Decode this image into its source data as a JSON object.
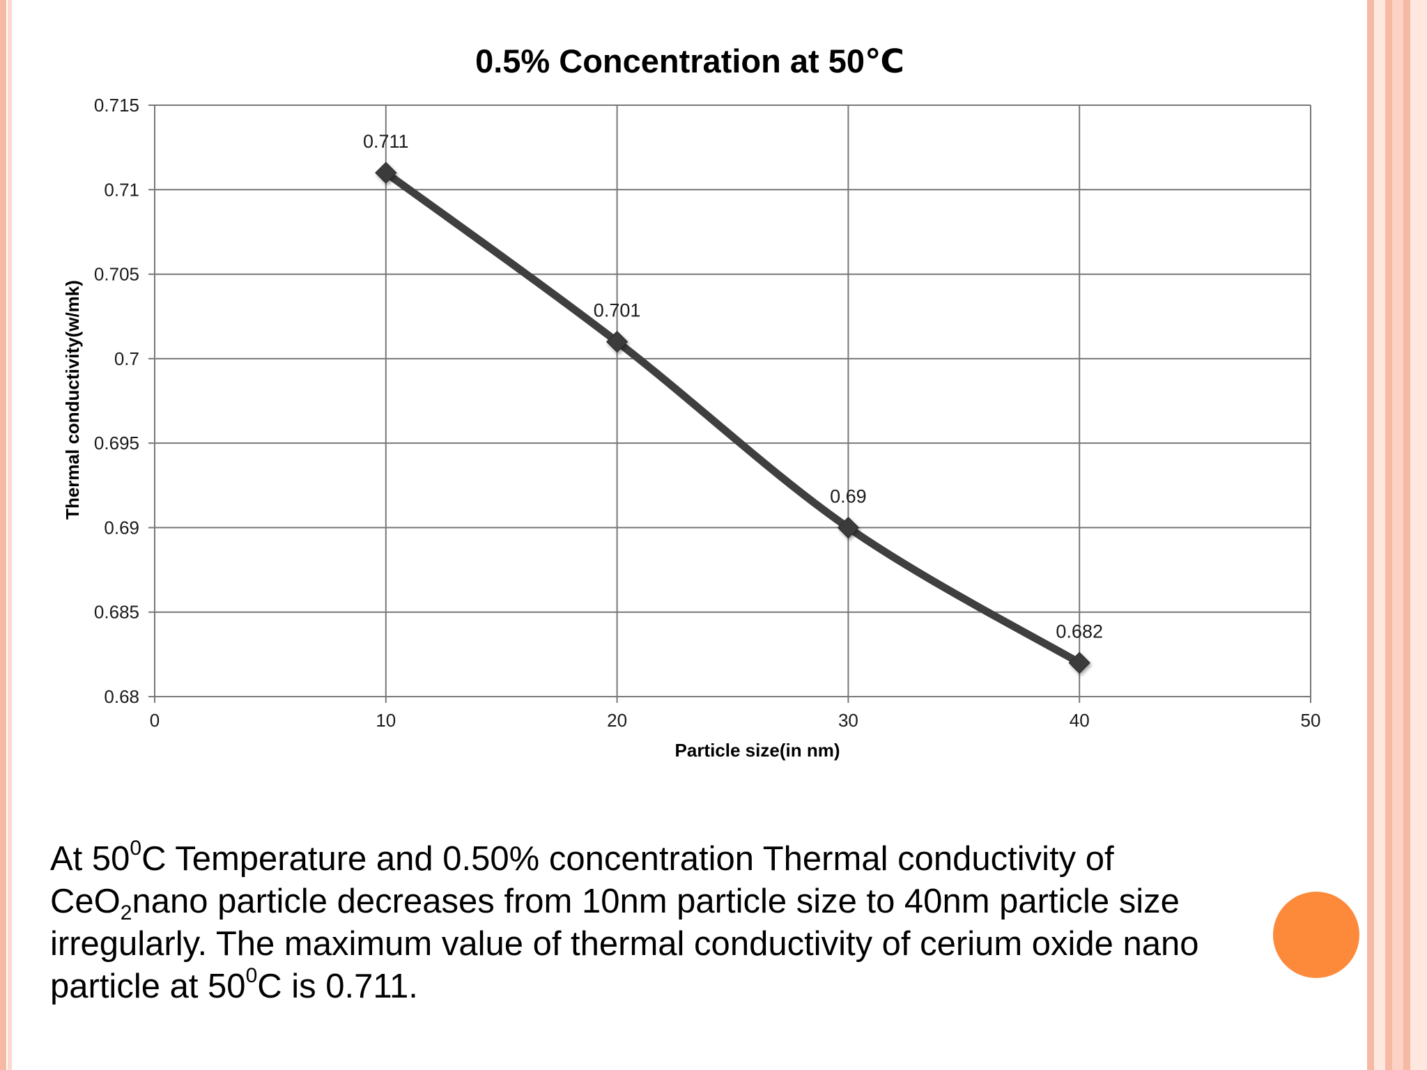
{
  "chart_data": {
    "type": "line",
    "title": "0.5% Concentration at 50℃",
    "xlabel": "Particle size(in nm)",
    "ylabel": "Thermal conductivity(w/mk)",
    "x": [
      10,
      20,
      30,
      40
    ],
    "y": [
      0.711,
      0.701,
      0.69,
      0.682
    ],
    "point_labels": [
      "0.711",
      "0.701",
      "0.69",
      "0.682"
    ],
    "xlim": [
      0,
      50
    ],
    "ylim": [
      0.68,
      0.715
    ],
    "x_ticks": [
      0,
      10,
      20,
      30,
      40,
      50
    ],
    "x_tick_labels": [
      "0",
      "10",
      "20",
      "30",
      "40",
      "50"
    ],
    "y_ticks": [
      0.68,
      0.685,
      0.69,
      0.695,
      0.7,
      0.705,
      0.71,
      0.715
    ],
    "y_tick_labels": [
      "0.68",
      "0.685",
      "0.69",
      "0.695",
      "0.7",
      "0.705",
      "0.71",
      "0.715"
    ],
    "grid": true,
    "marker": "diamond",
    "line_color": "#3f3f3f",
    "legend": "none"
  },
  "caption": {
    "line1_a": "At 50",
    "line1_sup": "0",
    "line1_b": "C Temperature and 0.50% concentration Thermal conductivity of",
    "line2_a": "CeO",
    "line2_sub": "2",
    "line2_b": "nano particle decreases from 10nm particle size to 40nm particle size",
    "line3": "irregularly. The maximum value of thermal conductivity of cerium oxide nano",
    "line4_a": "particle at 50",
    "line4_sup": "0",
    "line4_b": "C is 0.711."
  },
  "colors": {
    "accent_dot": "#fd8a3b",
    "border_stripe": "#f6b9a4"
  }
}
